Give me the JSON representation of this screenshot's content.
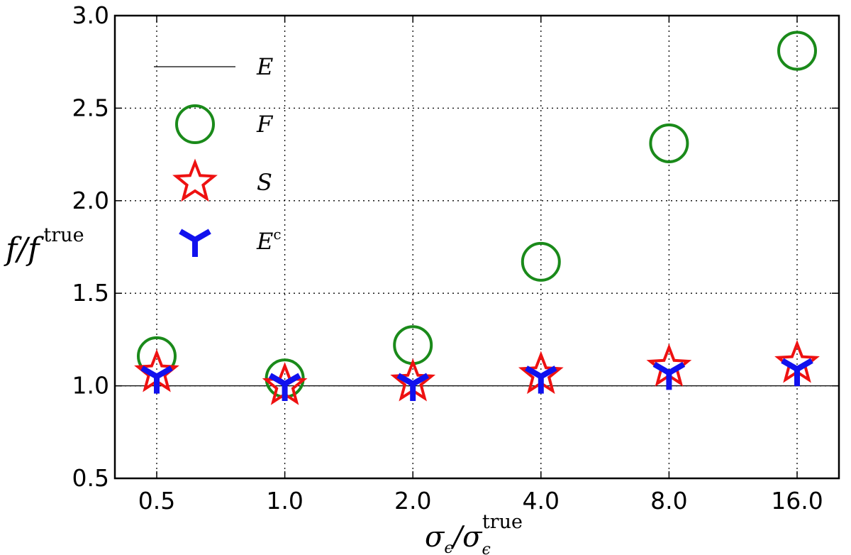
{
  "chart_data": {
    "type": "scatter",
    "categories": [
      "0.5",
      "1.0",
      "2.0",
      "4.0",
      "8.0",
      "16.0"
    ],
    "ylim": [
      0.5,
      3.0
    ],
    "yticks": [
      "0.5",
      "1.0",
      "1.5",
      "2.0",
      "2.5",
      "3.0"
    ],
    "grid": true,
    "legend_position": "top-left",
    "xlabel": {
      "base": "σ",
      "sub": "ϵ",
      "slash": "/",
      "base2": "σ",
      "sub2": "ϵ",
      "sup2": "true"
    },
    "ylabel": {
      "base": "f",
      "slash": "/",
      "base2": "f",
      "sup": "true"
    },
    "series": [
      {
        "name": "E",
        "marker": "line",
        "color": "#000000",
        "values": [
          1.0,
          1.0,
          1.0,
          1.0,
          1.0,
          1.0
        ]
      },
      {
        "name": "F",
        "marker": "circle",
        "color": "#1a8a1a",
        "values": [
          1.16,
          1.04,
          1.22,
          1.67,
          2.31,
          2.81
        ]
      },
      {
        "name": "S",
        "marker": "star",
        "color": "#ee1111",
        "values": [
          1.07,
          1.0,
          1.02,
          1.06,
          1.1,
          1.12
        ]
      },
      {
        "name": "E",
        "name_sup": "c",
        "marker": "tri_down",
        "color": "#1111ee",
        "values": [
          1.05,
          1.01,
          1.01,
          1.05,
          1.07,
          1.09
        ]
      }
    ]
  }
}
